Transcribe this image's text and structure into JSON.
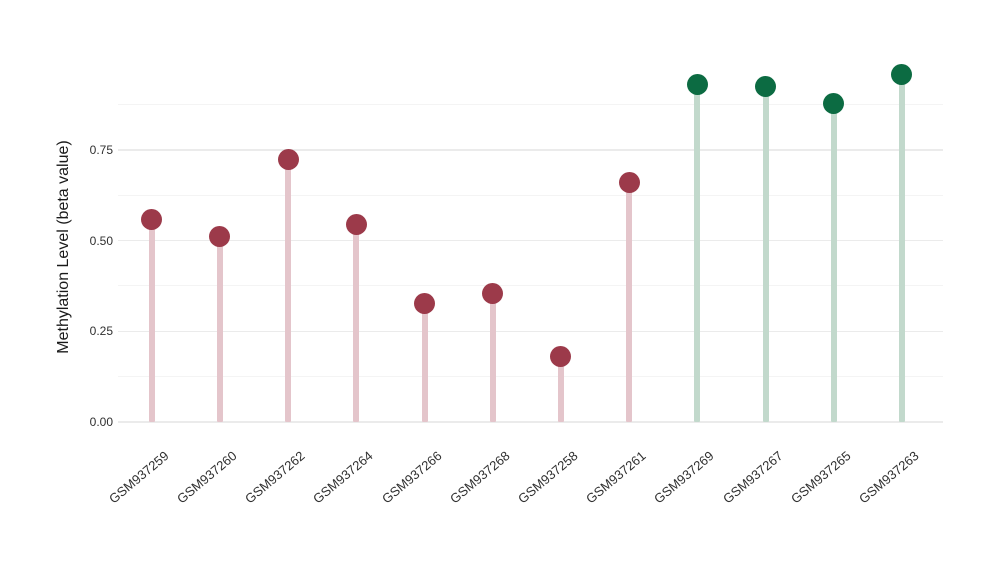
{
  "chart_data": {
    "type": "lollipop",
    "title": "",
    "xlabel": "",
    "ylabel": "Methylation Level (beta value)",
    "ylim": [
      0,
      1
    ],
    "grid": "on",
    "legend": "none",
    "ytick_values": [
      0,
      0.25,
      0.5,
      0.75
    ],
    "ytick_labels": [
      "0.00",
      "0.25",
      "0.50",
      "0.75"
    ],
    "minor_gridline_values": [
      0.125,
      0.375,
      0.625,
      0.875
    ],
    "categories": [
      "GSM937259",
      "GSM937260",
      "GSM937262",
      "GSM937264",
      "GSM937266",
      "GSM937268",
      "GSM937258",
      "GSM937261",
      "GSM937269",
      "GSM937267",
      "GSM937265",
      "GSM937263"
    ],
    "values": [
      0.557,
      0.511,
      0.725,
      0.545,
      0.328,
      0.353,
      0.181,
      0.659,
      0.931,
      0.925,
      0.879,
      0.959
    ],
    "point_groups": [
      "red",
      "red",
      "red",
      "red",
      "red",
      "red",
      "red",
      "red",
      "green",
      "green",
      "green",
      "green"
    ],
    "palette": {
      "red": {
        "dot": "#9c3a4a",
        "stem": "#e4c5cb"
      },
      "green": {
        "dot": "#0c6b42",
        "stem": "#c2d9cc"
      }
    },
    "colors": {
      "background": "#ffffff",
      "grid_major": "#ebebeb",
      "grid_minor": "#f4f4f4",
      "tick_text": "#303030",
      "axis_title_text": "#1a1a1a"
    }
  }
}
